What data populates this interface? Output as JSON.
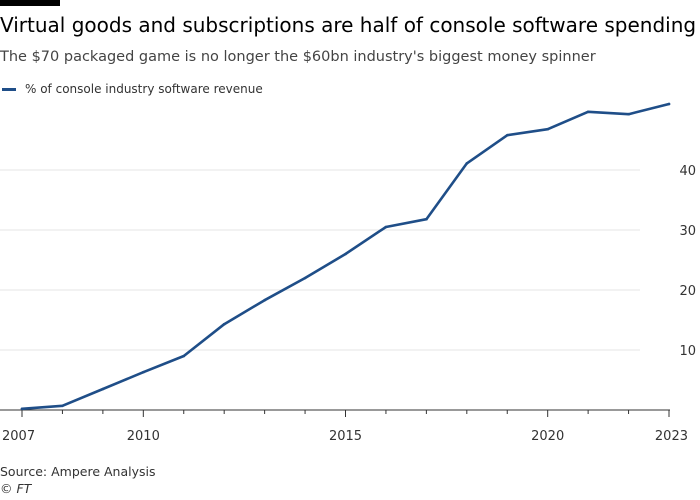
{
  "chart_data": {
    "type": "line",
    "title": "Virtual goods and subscriptions are half of console software spending",
    "subtitle": "The $70 packaged game is no longer the $60bn industry's biggest money spinner",
    "xlabel": "",
    "ylabel": "",
    "x": [
      2007,
      2008,
      2009,
      2010,
      2011,
      2012,
      2013,
      2014,
      2015,
      2016,
      2017,
      2018,
      2019,
      2020,
      2021,
      2022,
      2023
    ],
    "series": [
      {
        "name": "% of console industry software revenue",
        "values": [
          0.2,
          0.7,
          3.5,
          6.3,
          9.0,
          14.3,
          18.3,
          22.0,
          26.0,
          30.5,
          31.8,
          41.1,
          45.8,
          46.8,
          49.7,
          49.3,
          51.0
        ],
        "color": "#1f4e88"
      }
    ],
    "xlim": [
      2007,
      2023
    ],
    "ylim": [
      0,
      51
    ],
    "x_ticks": [
      2007,
      2010,
      2015,
      2020,
      2023
    ],
    "y_ticks": [
      10,
      20,
      30,
      40
    ],
    "grid": "horizontal",
    "legend_position": "top-left"
  },
  "footer": {
    "source": "Source: Ampere Analysis",
    "credit": "© FT"
  },
  "colors": {
    "series": "#1f4e88",
    "grid": "#e6e6e6",
    "axis": "#333333",
    "tick_text": "#333333"
  }
}
